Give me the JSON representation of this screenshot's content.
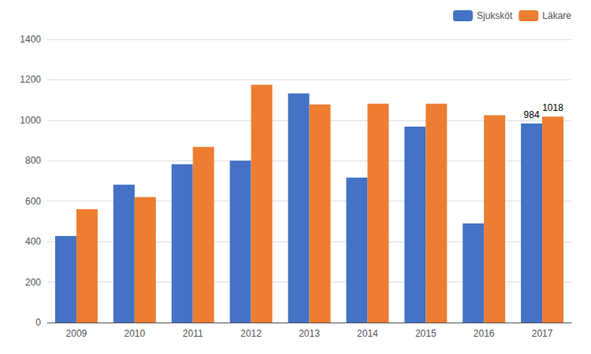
{
  "chart_data": {
    "type": "bar",
    "categories": [
      "2009",
      "2010",
      "2011",
      "2012",
      "2013",
      "2014",
      "2015",
      "2016",
      "2017"
    ],
    "series": [
      {
        "name": "Sjuksköt",
        "color": "#4472c4",
        "values": [
          428,
          682,
          783,
          800,
          1133,
          717,
          968,
          490,
          984
        ]
      },
      {
        "name": "Läkare",
        "color": "#ed7d31",
        "values": [
          560,
          620,
          868,
          1175,
          1078,
          1082,
          1082,
          1025,
          1018
        ]
      }
    ],
    "annotations": [
      {
        "text": "984",
        "series": "Sjuksköt",
        "category": "2017"
      },
      {
        "text": "1018",
        "series": "Läkare",
        "category": "2017"
      }
    ],
    "ylim": [
      0,
      1400
    ],
    "yticks": [
      0,
      200,
      400,
      600,
      800,
      1000,
      1200,
      1400
    ],
    "grid": true,
    "legend": "upper right"
  }
}
